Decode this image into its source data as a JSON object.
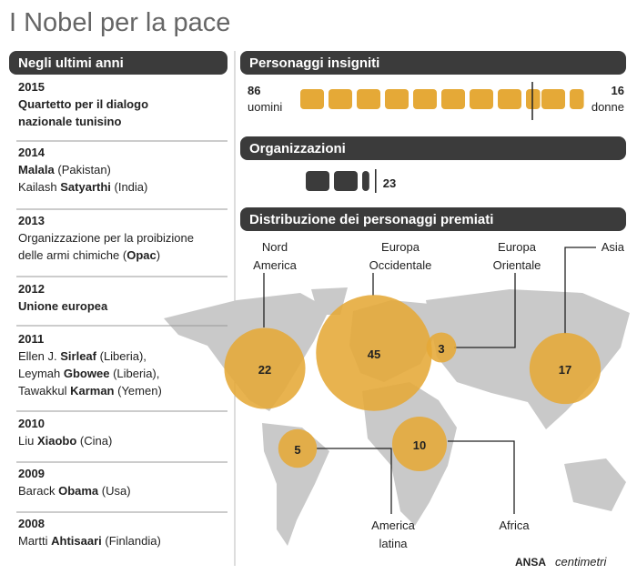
{
  "title": "I Nobel per la pace",
  "recent": {
    "header": "Negli ultimi anni",
    "entries": [
      {
        "year": "2015",
        "lines": [
          [
            {
              "text": "Quartetto per il dialogo",
              "bold": true
            }
          ],
          [
            {
              "text": "nazionale tunisino",
              "bold": true
            }
          ]
        ]
      },
      {
        "year": "2014",
        "lines": [
          [
            {
              "text": "Malala",
              "bold": true
            },
            {
              "text": " (Pakistan)"
            }
          ],
          [
            {
              "text": "Kailash "
            },
            {
              "text": "Satyarthi",
              "bold": true
            },
            {
              "text": " (India)"
            }
          ]
        ]
      },
      {
        "year": "2013",
        "lines": [
          [
            {
              "text": "Organizzazione per la proibizione"
            }
          ],
          [
            {
              "text": "delle armi chimiche ("
            },
            {
              "text": "Opac",
              "bold": true
            },
            {
              "text": ")"
            }
          ]
        ]
      },
      {
        "year": "2012",
        "lines": [
          [
            {
              "text": "Unione europea",
              "bold": true
            }
          ]
        ]
      },
      {
        "year": "2011",
        "lines": [
          [
            {
              "text": "Ellen J. "
            },
            {
              "text": "Sirleaf",
              "bold": true
            },
            {
              "text": " (Liberia),"
            }
          ],
          [
            {
              "text": "Leymah "
            },
            {
              "text": "Gbowee",
              "bold": true
            },
            {
              "text": " (Liberia),"
            }
          ],
          [
            {
              "text": "Tawakkul "
            },
            {
              "text": "Karman",
              "bold": true
            },
            {
              "text": " (Yemen)"
            }
          ]
        ]
      },
      {
        "year": "2010",
        "lines": [
          [
            {
              "text": "Liu "
            },
            {
              "text": "Xiaobo",
              "bold": true
            },
            {
              "text": " (Cina)"
            }
          ]
        ]
      },
      {
        "year": "2009",
        "lines": [
          [
            {
              "text": "Barack "
            },
            {
              "text": "Obama",
              "bold": true
            },
            {
              "text": " (Usa)"
            }
          ]
        ]
      },
      {
        "year": "2008",
        "lines": [
          [
            {
              "text": "Martti "
            },
            {
              "text": "Ahtisaari",
              "bold": true
            },
            {
              "text": " (Finlandia)"
            }
          ]
        ]
      }
    ]
  },
  "laureates": {
    "header": "Personaggi insigniti",
    "color": "#e5a937",
    "men": {
      "value": 86,
      "label": "uomini"
    },
    "women": {
      "value": 16,
      "label": "donne"
    }
  },
  "organizations": {
    "header": "Organizzazioni",
    "value": 23,
    "color": "#3b3b3b"
  },
  "distribution": {
    "header": "Distribuzione dei personaggi premiati",
    "color": "#e5a937",
    "regions": [
      {
        "name": [
          "Nord",
          "America"
        ],
        "value": 22
      },
      {
        "name": [
          "Europa",
          "Occidentale"
        ],
        "value": 45
      },
      {
        "name": [
          "Europa",
          "Orientale"
        ],
        "value": 3
      },
      {
        "name": [
          "Asia"
        ],
        "value": 17
      },
      {
        "name": [
          "America",
          "latina"
        ],
        "value": 5
      },
      {
        "name": [
          "Africa"
        ],
        "value": 10
      }
    ]
  },
  "source": {
    "agency": "ANSA",
    "partner": "centimetri"
  }
}
